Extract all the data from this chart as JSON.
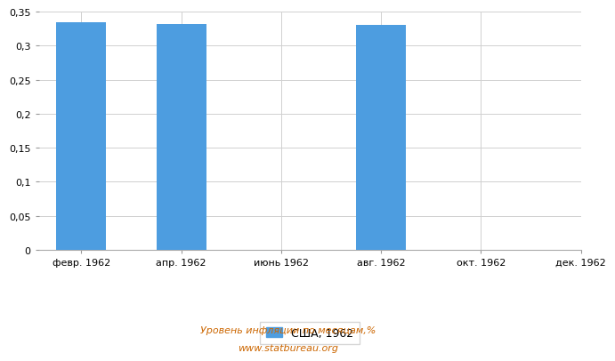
{
  "categories": [
    "февр. 1962",
    "апр. 1962",
    "июнь 1962",
    "авг. 1962",
    "окт. 1962",
    "дек. 1962"
  ],
  "values": [
    0.334,
    0.332,
    0.0,
    0.331,
    0.0,
    0.0
  ],
  "bar_color": "#4d9de0",
  "bar_width": 0.5,
  "ylim": [
    0,
    0.35
  ],
  "yticks": [
    0,
    0.05,
    0.1,
    0.15,
    0.2,
    0.25,
    0.3,
    0.35
  ],
  "ytick_labels": [
    "0",
    "0,05",
    "0,1",
    "0,15",
    "0,2",
    "0,25",
    "0,3",
    "0,35"
  ],
  "legend_label": "США, 1962",
  "footnote_line1": "Уровень инфляции по месяцам,%",
  "footnote_line2": "www.statbureau.org",
  "background_color": "#ffffff",
  "grid_color": "#d0d0d0",
  "footnote_color": "#cc6600"
}
